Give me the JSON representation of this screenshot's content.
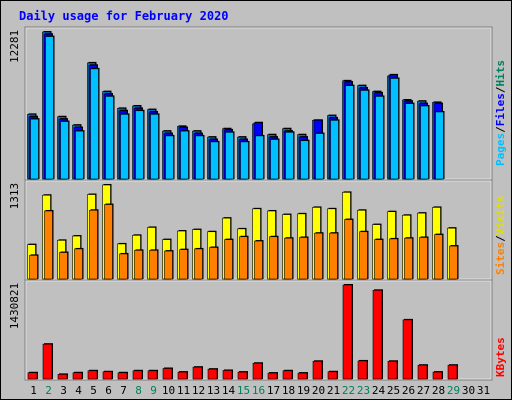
{
  "title": "Daily usage for February 2020",
  "colors": {
    "background": "#c0c0c0",
    "title": "#0000ff",
    "hits": "#00c0ff",
    "files": "#0000ff",
    "pages": "#00c0ff",
    "visits": "#ffff00",
    "sites": "#ff8000",
    "kbytes": "#ff0000",
    "slash": "#000000",
    "weekend": "#00805c",
    "weekday": "#000000"
  },
  "legends": {
    "top": [
      {
        "text": "Pages",
        "color": "#00c0ff"
      },
      {
        "text": "/",
        "color": "#000000"
      },
      {
        "text": "Files",
        "color": "#0000ff"
      },
      {
        "text": "/",
        "color": "#000000"
      },
      {
        "text": "Hits",
        "color": "#00805c"
      }
    ],
    "middle": [
      {
        "text": "Sites",
        "color": "#ff8000"
      },
      {
        "text": "/",
        "color": "#000000"
      },
      {
        "text": "Visits",
        "color": "#e0e000"
      }
    ],
    "bottom": [
      {
        "text": "KBytes",
        "color": "#ff0000"
      }
    ]
  },
  "chart_data": [
    {
      "type": "bar",
      "title": "Daily usage for February 2020",
      "ylabel_max": "12281",
      "ylim": [
        0,
        12281
      ],
      "x": [
        "1",
        "2",
        "3",
        "4",
        "5",
        "6",
        "7",
        "8",
        "9",
        "10",
        "11",
        "12",
        "13",
        "14",
        "15",
        "16",
        "17",
        "18",
        "19",
        "20",
        "21",
        "22",
        "23",
        "24",
        "25",
        "26",
        "27",
        "28",
        "29",
        "30",
        "31"
      ],
      "series": [
        {
          "name": "Hits",
          "values": [
            5400,
            12281,
            5200,
            4500,
            9700,
            7300,
            5900,
            6100,
            5800,
            4000,
            4400,
            4000,
            3500,
            4200,
            3500,
            4600,
            3700,
            4200,
            3700,
            4900,
            5300,
            8200,
            7800,
            7300,
            8600,
            6600,
            6500,
            6400,
            0,
            0,
            0
          ]
        },
        {
          "name": "Files",
          "values": [
            5200,
            12100,
            5000,
            4300,
            9500,
            7100,
            5700,
            5900,
            5600,
            3800,
            4300,
            3800,
            3300,
            4100,
            3300,
            4700,
            3500,
            4000,
            3500,
            4900,
            5100,
            8100,
            7600,
            7200,
            8700,
            6500,
            6300,
            6300,
            0,
            0,
            0
          ]
        },
        {
          "name": "Pages",
          "values": [
            5000,
            11900,
            4800,
            4000,
            9200,
            6900,
            5400,
            5700,
            5400,
            3600,
            4000,
            3600,
            3100,
            3900,
            3100,
            3600,
            3300,
            3900,
            3200,
            3800,
            4900,
            7800,
            7400,
            6900,
            8400,
            6300,
            6100,
            5600,
            0,
            0,
            0
          ]
        }
      ]
    },
    {
      "type": "bar",
      "ylabel_max": "1313",
      "ylim": [
        0,
        1313
      ],
      "x": [
        "1",
        "2",
        "3",
        "4",
        "5",
        "6",
        "7",
        "8",
        "9",
        "10",
        "11",
        "12",
        "13",
        "14",
        "15",
        "16",
        "17",
        "18",
        "19",
        "20",
        "21",
        "22",
        "23",
        "24",
        "25",
        "26",
        "27",
        "28",
        "29",
        "30",
        "31"
      ],
      "series": [
        {
          "name": "Visits",
          "values": [
            480,
            1170,
            540,
            600,
            1180,
            1313,
            490,
            610,
            720,
            550,
            670,
            690,
            660,
            850,
            700,
            980,
            950,
            900,
            910,
            1000,
            980,
            1210,
            960,
            760,
            940,
            890,
            920,
            1000,
            710,
            0,
            0
          ]
        },
        {
          "name": "Sites",
          "values": [
            330,
            950,
            370,
            420,
            960,
            1040,
            350,
            400,
            400,
            390,
            410,
            420,
            440,
            550,
            590,
            530,
            590,
            570,
            580,
            640,
            640,
            830,
            660,
            550,
            560,
            570,
            580,
            620,
            460,
            0,
            0
          ]
        }
      ]
    },
    {
      "type": "bar",
      "ylabel_max": "1430821",
      "ylim": [
        0,
        1430821
      ],
      "x": [
        "1",
        "2",
        "3",
        "4",
        "5",
        "6",
        "7",
        "8",
        "9",
        "10",
        "11",
        "12",
        "13",
        "14",
        "15",
        "16",
        "17",
        "18",
        "19",
        "20",
        "21",
        "22",
        "23",
        "24",
        "25",
        "26",
        "27",
        "28",
        "29",
        "30",
        "31"
      ],
      "series": [
        {
          "name": "KBytes",
          "values": [
            95000,
            530000,
            70000,
            95000,
            125000,
            110000,
            95000,
            125000,
            125000,
            160000,
            105000,
            180000,
            150000,
            130000,
            105000,
            240000,
            90000,
            125000,
            90000,
            270000,
            110000,
            1430821,
            275000,
            1350000,
            270000,
            900000,
            210000,
            105000,
            210000,
            0,
            0
          ]
        }
      ]
    }
  ],
  "x_labels": [
    {
      "text": "1",
      "weekend": false
    },
    {
      "text": "2",
      "weekend": true
    },
    {
      "text": "3",
      "weekend": false
    },
    {
      "text": "4",
      "weekend": false
    },
    {
      "text": "5",
      "weekend": false
    },
    {
      "text": "6",
      "weekend": false
    },
    {
      "text": "7",
      "weekend": false
    },
    {
      "text": "8",
      "weekend": true
    },
    {
      "text": "9",
      "weekend": true
    },
    {
      "text": "10",
      "weekend": false
    },
    {
      "text": "11",
      "weekend": false
    },
    {
      "text": "12",
      "weekend": false
    },
    {
      "text": "13",
      "weekend": false
    },
    {
      "text": "14",
      "weekend": false
    },
    {
      "text": "15",
      "weekend": true
    },
    {
      "text": "16",
      "weekend": true
    },
    {
      "text": "17",
      "weekend": false
    },
    {
      "text": "18",
      "weekend": false
    },
    {
      "text": "19",
      "weekend": false
    },
    {
      "text": "20",
      "weekend": false
    },
    {
      "text": "21",
      "weekend": false
    },
    {
      "text": "22",
      "weekend": true
    },
    {
      "text": "23",
      "weekend": true
    },
    {
      "text": "24",
      "weekend": false
    },
    {
      "text": "25",
      "weekend": false
    },
    {
      "text": "26",
      "weekend": false
    },
    {
      "text": "27",
      "weekend": false
    },
    {
      "text": "28",
      "weekend": false
    },
    {
      "text": "29",
      "weekend": true
    },
    {
      "text": "30",
      "weekend": false
    },
    {
      "text": "31",
      "weekend": false
    }
  ]
}
